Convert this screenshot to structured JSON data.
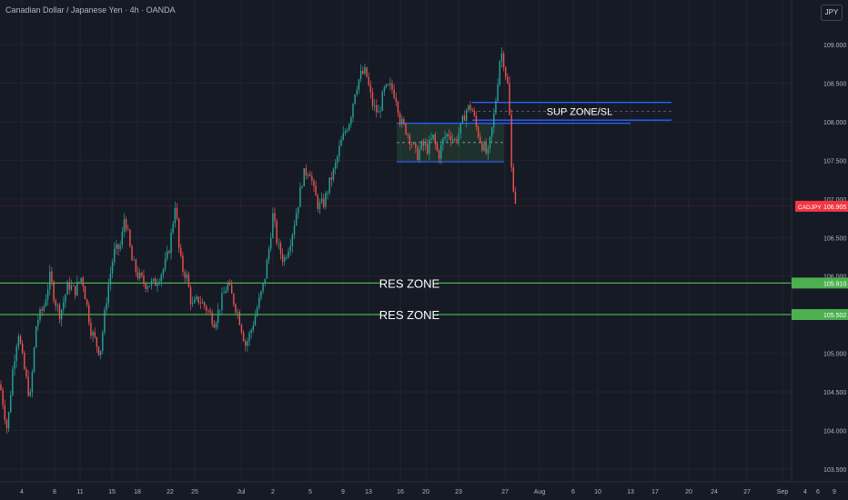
{
  "header": {
    "title": "Canadian Dollar / Japanese Yen · 4h · OANDA",
    "currency_button": "JPY"
  },
  "chart_data": {
    "type": "candlestick",
    "symbol": "CADJPY",
    "price_axis": {
      "range": [
        103.35,
        109.35
      ],
      "ticks": [
        "103.500",
        "104.000",
        "104.500",
        "105.000",
        "105.500",
        "106.000",
        "106.500",
        "107.000",
        "107.500",
        "108.000",
        "108.500",
        "109.000"
      ]
    },
    "time_axis": {
      "ticks": [
        "4",
        "8",
        "11",
        "15",
        "18",
        "22",
        "25",
        "Jul",
        "2",
        "5",
        "9",
        "13",
        "16",
        "20",
        "23",
        "27",
        "Aug",
        "6",
        "10",
        "13",
        "17",
        "20",
        "24",
        "27",
        "Sep",
        "4",
        "6",
        "9"
      ]
    },
    "colors": {
      "up": "#26a69a",
      "down": "#ef5350",
      "grid": "#1f2431",
      "axis_text": "#b2b5be",
      "zone_blue": "#2962ff",
      "res_green": "#4caf50",
      "current_red": "#f23645"
    },
    "current_price": {
      "label": "CADJPY",
      "value": "106.905",
      "price": 106.905
    },
    "res_zones": [
      {
        "label": "RES ZONE",
        "price": 105.91,
        "value_label": "105.910"
      },
      {
        "label": "RES ZONE",
        "price": 105.502,
        "value_label": "105.502"
      }
    ],
    "sup_zone": {
      "label": "SUP ZONE/SL",
      "top": 108.25,
      "bottom": 108.02
    },
    "range_box": {
      "top": 107.98,
      "bottom": 107.48,
      "mid": 107.73
    },
    "path_anchors": [
      [
        0,
        104.6
      ],
      [
        8,
        104.0
      ],
      [
        14,
        104.8
      ],
      [
        20,
        105.3
      ],
      [
        25,
        104.9
      ],
      [
        33,
        104.4
      ],
      [
        40,
        105.4
      ],
      [
        48,
        105.6
      ],
      [
        55,
        106.0
      ],
      [
        60,
        105.7
      ],
      [
        66,
        105.5
      ],
      [
        75,
        105.9
      ],
      [
        82,
        105.8
      ],
      [
        90,
        106.0
      ],
      [
        100,
        105.3
      ],
      [
        110,
        105.0
      ],
      [
        118,
        105.8
      ],
      [
        125,
        106.3
      ],
      [
        133,
        106.4
      ],
      [
        137,
        106.8
      ],
      [
        145,
        106.2
      ],
      [
        152,
        106.0
      ],
      [
        160,
        105.9
      ],
      [
        170,
        105.9
      ],
      [
        180,
        106.1
      ],
      [
        185,
        106.3
      ],
      [
        189,
        106.6
      ],
      [
        193,
        107.0
      ],
      [
        196,
        106.4
      ],
      [
        200,
        106.1
      ],
      [
        205,
        106.0
      ],
      [
        211,
        105.6
      ],
      [
        218,
        105.7
      ],
      [
        226,
        105.6
      ],
      [
        236,
        105.4
      ],
      [
        244,
        105.7
      ],
      [
        250,
        105.9
      ],
      [
        256,
        105.7
      ],
      [
        262,
        105.5
      ],
      [
        270,
        105.1
      ],
      [
        276,
        105.3
      ],
      [
        283,
        105.6
      ],
      [
        290,
        105.9
      ],
      [
        295,
        106.3
      ],
      [
        300,
        106.8
      ],
      [
        305,
        106.4
      ],
      [
        312,
        106.2
      ],
      [
        320,
        106.5
      ],
      [
        327,
        106.9
      ],
      [
        333,
        107.3
      ],
      [
        340,
        107.4
      ],
      [
        345,
        107.1
      ],
      [
        350,
        106.9
      ],
      [
        356,
        106.95
      ],
      [
        362,
        107.2
      ],
      [
        368,
        107.4
      ],
      [
        374,
        107.7
      ],
      [
        380,
        107.9
      ],
      [
        385,
        108.05
      ],
      [
        390,
        108.4
      ],
      [
        396,
        108.6
      ],
      [
        402,
        108.65
      ],
      [
        406,
        108.4
      ],
      [
        410,
        108.2
      ],
      [
        416,
        108.1
      ],
      [
        422,
        108.4
      ],
      [
        430,
        108.45
      ],
      [
        436,
        108.3
      ],
      [
        440,
        108.0
      ],
      [
        446,
        107.9
      ],
      [
        452,
        107.75
      ],
      [
        458,
        107.55
      ],
      [
        464,
        107.7
      ],
      [
        470,
        107.65
      ],
      [
        476,
        107.8
      ],
      [
        482,
        107.55
      ],
      [
        488,
        107.8
      ],
      [
        494,
        107.85
      ],
      [
        500,
        107.75
      ],
      [
        506,
        107.9
      ],
      [
        512,
        108.15
      ],
      [
        518,
        108.2
      ],
      [
        524,
        107.9
      ],
      [
        530,
        107.7
      ],
      [
        536,
        107.55
      ],
      [
        542,
        108.0
      ],
      [
        546,
        108.4
      ],
      [
        549,
        108.8
      ],
      [
        552,
        108.9
      ],
      [
        556,
        108.6
      ],
      [
        559,
        108.4
      ],
      [
        562,
        107.4
      ],
      [
        565,
        107.1
      ],
      [
        568,
        106.85
      ]
    ]
  }
}
